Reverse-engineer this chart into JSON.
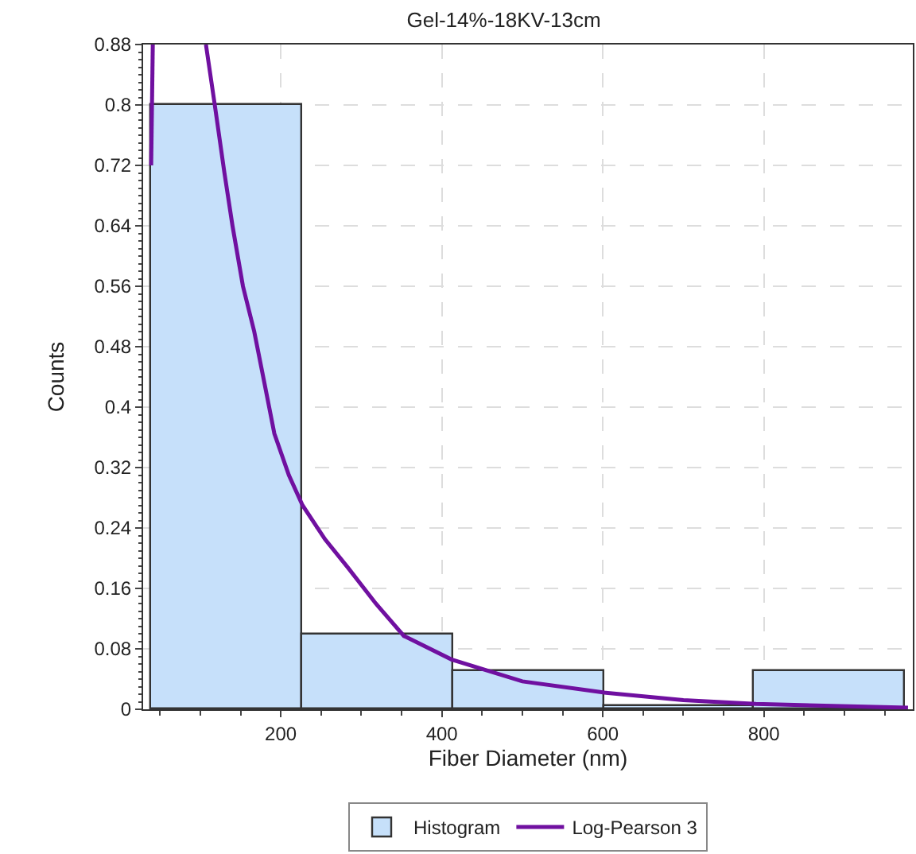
{
  "chart_data": {
    "type": "histogram",
    "title": "Gel-14%-18KV-13cm",
    "xlabel": "Fiber Diameter (nm)",
    "ylabel": "Counts",
    "bins": [
      39,
      227,
      414,
      601,
      788,
      976
    ],
    "series": [
      {
        "name": "Histogram",
        "color": "#c6e0fa",
        "values": [
          0.8,
          0.1,
          0.05,
          0.005,
          0.05
        ]
      },
      {
        "type": "line",
        "name": "Log-Pearson 3",
        "color": "#7010a0",
        "x": [
          39,
          41,
          null,
          107,
          118,
          130,
          140,
          153,
          167,
          180,
          192,
          210,
          227,
          255,
          283,
          318,
          353,
          412,
          500,
          602,
          700,
          790,
          979
        ],
        "values": [
          0.72,
          0.88,
          null,
          0.88,
          0.8,
          0.71,
          0.64,
          0.56,
          0.5,
          0.43,
          0.365,
          0.31,
          0.27,
          0.225,
          0.188,
          0.14,
          0.097,
          0.066,
          0.037,
          0.022,
          0.012,
          0.007,
          0.002
        ]
      }
    ],
    "xlim": [
      29,
      985
    ],
    "xticks": [
      200,
      400,
      600,
      800
    ],
    "ylim": [
      0,
      0.88
    ],
    "yticks": [
      0,
      0.08,
      0.16,
      0.24,
      0.32,
      0.4,
      0.48,
      0.56,
      0.64,
      0.72,
      0.8,
      0.88
    ],
    "grid": true,
    "legend": "bottom"
  }
}
